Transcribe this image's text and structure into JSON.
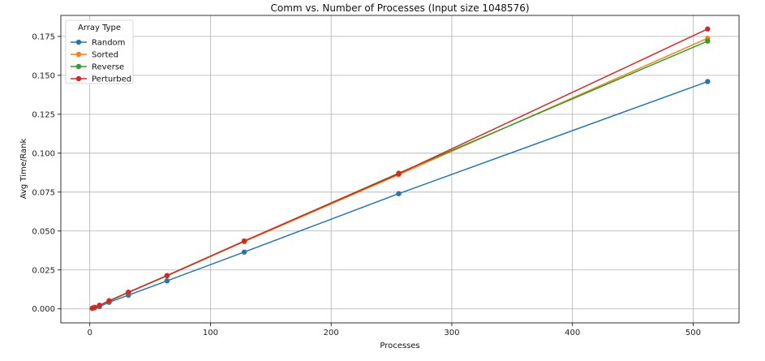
{
  "chart_data": {
    "type": "line",
    "title": "Comm vs. Number of Processes (Input size 1048576)",
    "xlabel": "Processes",
    "ylabel": "Avg Time/Rank",
    "xlim": [
      -24,
      538
    ],
    "ylim": [
      -0.009,
      0.1885
    ],
    "xticks": [
      0,
      100,
      200,
      300,
      400,
      500
    ],
    "yticks": [
      0.0,
      0.025,
      0.05,
      0.075,
      0.1,
      0.125,
      0.15,
      0.175
    ],
    "ytick_labels": [
      "0.000",
      "0.025",
      "0.050",
      "0.075",
      "0.100",
      "0.125",
      "0.150",
      "0.175"
    ],
    "grid": true,
    "legend": {
      "title": "Array Type",
      "position": "top-left"
    },
    "x": [
      2,
      4,
      8,
      16,
      32,
      64,
      128,
      256,
      512
    ],
    "series": [
      {
        "name": "Random",
        "color": "#1f77b4",
        "values": [
          0.0003,
          0.0007,
          0.0015,
          0.0042,
          0.0088,
          0.018,
          0.0365,
          0.074,
          0.146
        ]
      },
      {
        "name": "Sorted",
        "color": "#ff7f0e",
        "values": [
          0.0004,
          0.0009,
          0.0022,
          0.005,
          0.0105,
          0.0212,
          0.0432,
          0.0862,
          0.1738
        ]
      },
      {
        "name": "Reverse",
        "color": "#2ca02c",
        "values": [
          0.0004,
          0.0009,
          0.0022,
          0.0051,
          0.0106,
          0.0213,
          0.0435,
          0.0872,
          0.172
        ]
      },
      {
        "name": "Perturbed",
        "color": "#d62728",
        "values": [
          0.0004,
          0.001,
          0.0023,
          0.0052,
          0.0107,
          0.0214,
          0.0436,
          0.0868,
          0.1798
        ]
      }
    ]
  }
}
